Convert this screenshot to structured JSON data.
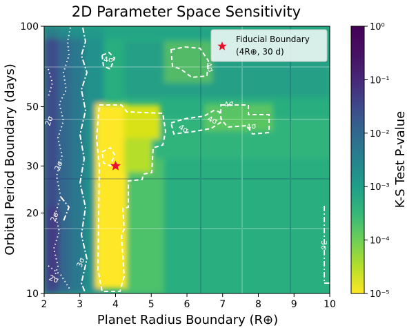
{
  "chart_data": {
    "type": "heatmap",
    "title": "2D Parameter Space Sensitivity",
    "xlabel": "Planet Radius Boundary (R⊕)",
    "ylabel": "Orbital Period Boundary (days)",
    "xlim": [
      2,
      10
    ],
    "ylim": [
      10,
      100
    ],
    "yscale": "log",
    "x_ticks": [
      "2",
      "3",
      "4",
      "5",
      "6",
      "7",
      "8",
      "9",
      "10"
    ],
    "x_tick_values": [
      2,
      3,
      4,
      5,
      6,
      7,
      8,
      9,
      10
    ],
    "y_ticks": [
      "10",
      "20",
      "30",
      "50",
      "100"
    ],
    "y_tick_values": [
      10,
      20,
      30,
      50,
      100
    ],
    "colorbar": {
      "label": "K-S Test P-value",
      "scale": "log",
      "range": [
        1e-05,
        1
      ],
      "ticks": [
        "10⁻⁵",
        "10⁻⁴",
        "10⁻³",
        "10⁻²",
        "10⁻¹",
        "10⁰"
      ],
      "tick_exponents": [
        -5,
        -4,
        -3,
        -2,
        -1,
        0
      ],
      "colormap": "viridis_r"
    },
    "contours": [
      {
        "label": "2σ",
        "style": "dotted"
      },
      {
        "label": "3σ",
        "style": "dash-dot"
      },
      {
        "label": "4σ",
        "style": "dashed"
      }
    ],
    "contour_label_texts": [
      "2σ",
      "2σ",
      "2σ",
      "2σ",
      "3σ",
      "3σ",
      "4σ",
      "4σ",
      "4σ",
      "4σ",
      "4σ",
      "4σ"
    ],
    "marker": {
      "label": "Fiducial Boundary",
      "sublabel": "(4R⊕, 30 d)",
      "x": 4,
      "y": 30,
      "symbol": "star",
      "color": "#e8102a"
    },
    "legend_position": "top-right"
  }
}
